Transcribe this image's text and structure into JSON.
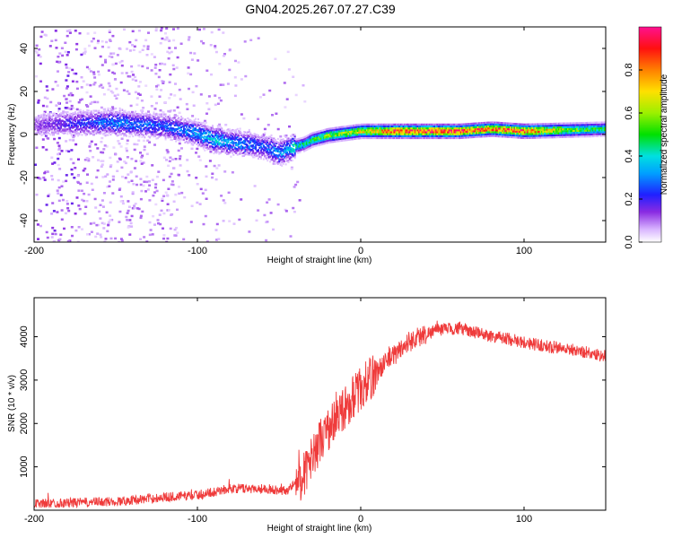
{
  "title": "GN04.2025.267.07.27.C39",
  "chart_data": [
    {
      "type": "heatmap",
      "xlabel": "Height of straight line (km)",
      "ylabel": "Frequency (Hz)",
      "xlim": [
        -200,
        150
      ],
      "ylim": [
        -50,
        50
      ],
      "xticks": [
        -200,
        -100,
        0,
        100
      ],
      "yticks": [
        -40,
        -20,
        0,
        20,
        40
      ],
      "colorbar": {
        "label": "Normalized spectral amplitude",
        "range": [
          0,
          1
        ],
        "ticks": [
          "0.0",
          "0.2",
          "0.4",
          "0.6",
          "0.8"
        ]
      },
      "ridge": {
        "description_points_km_hz": [
          [
            -200,
            5
          ],
          [
            -170,
            6
          ],
          [
            -150,
            6
          ],
          [
            -130,
            5
          ],
          [
            -110,
            3
          ],
          [
            -100,
            1
          ],
          [
            -90,
            -2
          ],
          [
            -80,
            -3
          ],
          [
            -70,
            -4
          ],
          [
            -60,
            -5
          ],
          [
            -50,
            -8
          ],
          [
            -45,
            -6
          ],
          [
            -35,
            -4
          ],
          [
            -30,
            -2
          ],
          [
            -20,
            0
          ],
          [
            -10,
            1
          ],
          [
            0,
            2
          ],
          [
            20,
            2
          ],
          [
            60,
            2
          ],
          [
            80,
            3
          ],
          [
            100,
            2
          ],
          [
            150,
            3
          ]
        ],
        "amplitude_km": [
          [
            -200,
            0.12
          ],
          [
            -150,
            0.3
          ],
          [
            -120,
            0.25
          ],
          [
            -90,
            0.35
          ],
          [
            -60,
            0.25
          ],
          [
            -40,
            0.4
          ],
          [
            -20,
            0.55
          ],
          [
            0,
            0.65
          ],
          [
            20,
            0.85
          ],
          [
            50,
            0.9
          ],
          [
            80,
            0.8
          ],
          [
            100,
            0.85
          ],
          [
            130,
            0.55
          ],
          [
            150,
            0.45
          ]
        ]
      }
    },
    {
      "type": "line",
      "xlabel": "Height of straight line (km)",
      "ylabel": "SNR (10 * v/v)",
      "xlim": [
        -200,
        150
      ],
      "ylim": [
        0,
        4900
      ],
      "xticks": [
        -200,
        -100,
        0,
        100
      ],
      "yticks": [
        1000,
        2000,
        3000,
        4000
      ],
      "color": "#ef3b3b",
      "trend_km_snr": [
        [
          -200,
          150
        ],
        [
          -150,
          200
        ],
        [
          -120,
          300
        ],
        [
          -100,
          350
        ],
        [
          -80,
          500
        ],
        [
          -60,
          500
        ],
        [
          -45,
          450
        ],
        [
          -35,
          800
        ],
        [
          -25,
          1600
        ],
        [
          -15,
          2100
        ],
        [
          -5,
          2600
        ],
        [
          5,
          3000
        ],
        [
          15,
          3400
        ],
        [
          30,
          3900
        ],
        [
          45,
          4150
        ],
        [
          60,
          4200
        ],
        [
          75,
          4050
        ],
        [
          90,
          3950
        ],
        [
          110,
          3800
        ],
        [
          130,
          3700
        ],
        [
          150,
          3550
        ]
      ]
    }
  ]
}
